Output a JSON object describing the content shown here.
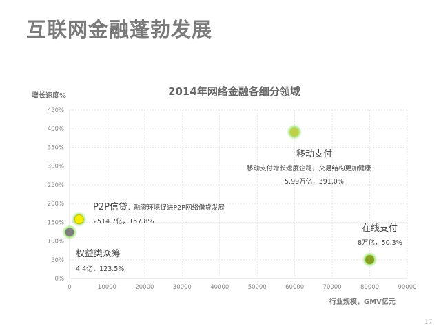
{
  "slide": {
    "title": "互联网金融蓬勃发展",
    "page_number": "17"
  },
  "chart_data": {
    "type": "scatter",
    "title": "2014年网络金融各细分领域",
    "xlabel": "行业规模，GMV亿元",
    "ylabel": "增长速度%",
    "xlim": [
      0,
      90000
    ],
    "ylim": [
      0,
      450
    ],
    "xticks": [
      "0",
      "10000",
      "20000",
      "30000",
      "40000",
      "50000",
      "60000",
      "70000",
      "80000",
      "90000"
    ],
    "yticks": [
      "0%",
      "50%",
      "100%",
      "150%",
      "200%",
      "250%",
      "300%",
      "350%",
      "400%",
      "450%"
    ],
    "grid": true,
    "points": [
      {
        "name": "P2P信贷",
        "x": 2514.7,
        "y": 157.8,
        "color": "#f5f000",
        "note": "：融资环境促进P2P网络借贷发展",
        "label": "2514.7亿，157.8%"
      },
      {
        "name": "权益类众筹",
        "x": 4.4,
        "y": 123.5,
        "color": "#7f7f7f",
        "note": "",
        "label": "4.4亿，123.5%"
      },
      {
        "name": "移动支付",
        "x": 59900,
        "y": 391.0,
        "color": "#bdd048",
        "note": "移动支付增长速度企稳，交易结构更加健康",
        "label": "5.99万亿，391.0%"
      },
      {
        "name": "在线支付",
        "x": 80000,
        "y": 50.3,
        "color": "#86a021",
        "note": "",
        "label": "8万亿，50.3%"
      }
    ]
  }
}
